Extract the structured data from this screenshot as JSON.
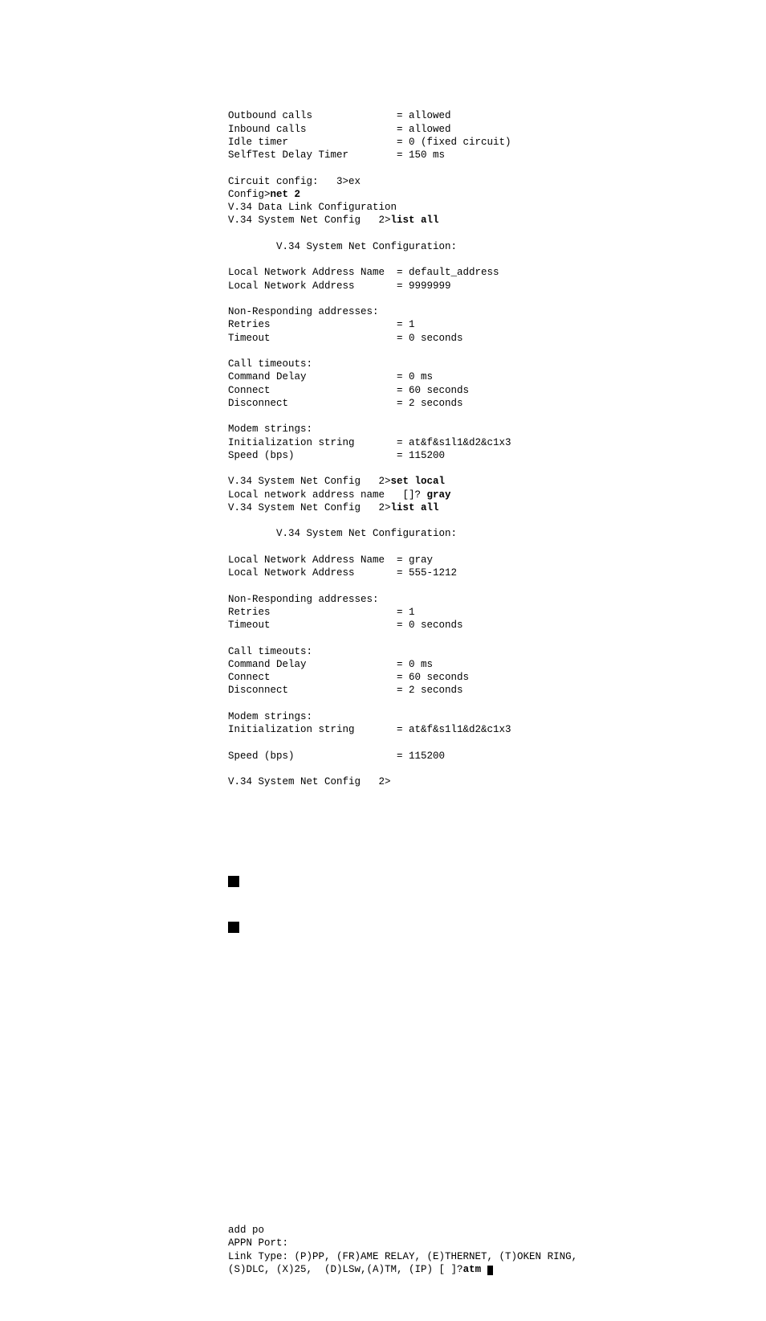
{
  "block1": {
    "rows": [
      {
        "label": "Outbound calls",
        "value": "= allowed"
      },
      {
        "label": "Inbound calls",
        "value": "= allowed"
      },
      {
        "label": "Idle timer",
        "value": "= 0 (fixed circuit)"
      },
      {
        "label": "SelfTest Delay Timer",
        "value": "= 150 ms"
      }
    ]
  },
  "prompt1": {
    "line1_left": "Circuit config:   3>ex",
    "line2_left": "Config>",
    "line2_bold": "net 2",
    "line3": "V.34 Data Link Configuration",
    "line4_left": "V.34 System Net Config   2>",
    "line4_bold": "list all"
  },
  "heading1": "V.34 System Net Configuration:",
  "block2": {
    "rows": [
      {
        "label": "Local Network Address Name",
        "value": "= default_address"
      },
      {
        "label": "Local Network Address",
        "value": "= 9999999"
      }
    ]
  },
  "block3": {
    "header": "Non-Responding addresses:",
    "rows": [
      {
        "label": "Retries",
        "value": "= 1"
      },
      {
        "label": "Timeout",
        "value": "= 0 seconds"
      }
    ]
  },
  "block4": {
    "header": "Call timeouts:",
    "rows": [
      {
        "label": "Command Delay",
        "value": "= 0 ms"
      },
      {
        "label": "Connect",
        "value": "= 60 seconds"
      },
      {
        "label": "Disconnect",
        "value": "= 2 seconds"
      }
    ]
  },
  "block5": {
    "header": "Modem strings:",
    "rows": [
      {
        "label": "Initialization string",
        "value": "= at&f&s1l1&d2&c1x3"
      },
      {
        "label": "Speed (bps)",
        "value": "= 115200"
      }
    ]
  },
  "prompt2": {
    "line1_left": "V.34 System Net Config   2>",
    "line1_bold": "set local",
    "line2_left": "Local network address name   []? ",
    "line2_bold": "gray",
    "line3_left": "V.34 System Net Config   2>",
    "line3_bold": "list all"
  },
  "heading2": "V.34 System Net Configuration:",
  "block6": {
    "rows": [
      {
        "label": "Local Network Address Name",
        "value": "= gray"
      },
      {
        "label": "Local Network Address",
        "value": "= 555-1212"
      }
    ]
  },
  "block7": {
    "header": "Non-Responding addresses:",
    "rows": [
      {
        "label": "Retries",
        "value": "= 1"
      },
      {
        "label": "Timeout",
        "value": "= 0 seconds"
      }
    ]
  },
  "block8": {
    "header": "Call timeouts:",
    "rows": [
      {
        "label": "Command Delay",
        "value": "= 0 ms"
      },
      {
        "label": "Connect",
        "value": "= 60 seconds"
      },
      {
        "label": "Disconnect",
        "value": "= 2 seconds"
      }
    ]
  },
  "block9": {
    "header": "Modem strings:",
    "rows": [
      {
        "label": "Initialization string",
        "value": "= at&f&s1l1&d2&c1x3"
      }
    ]
  },
  "block10": {
    "rows": [
      {
        "label": "Speed (bps)",
        "value": "= 115200"
      }
    ]
  },
  "prompt3": "V.34 System Net Config   2>",
  "bottom": {
    "line1": "add po",
    "line2": "APPN Port:",
    "line3": "Link Type: (P)PP, (FR)AME RELAY, (E)THERNET, (T)OKEN RING,",
    "line4_left": "(S)DLC, (X)25,  (D)LSw,(A)TM, (IP) [ ]?",
    "line4_bold": "atm"
  },
  "layout": {
    "label_col_width": 28
  }
}
